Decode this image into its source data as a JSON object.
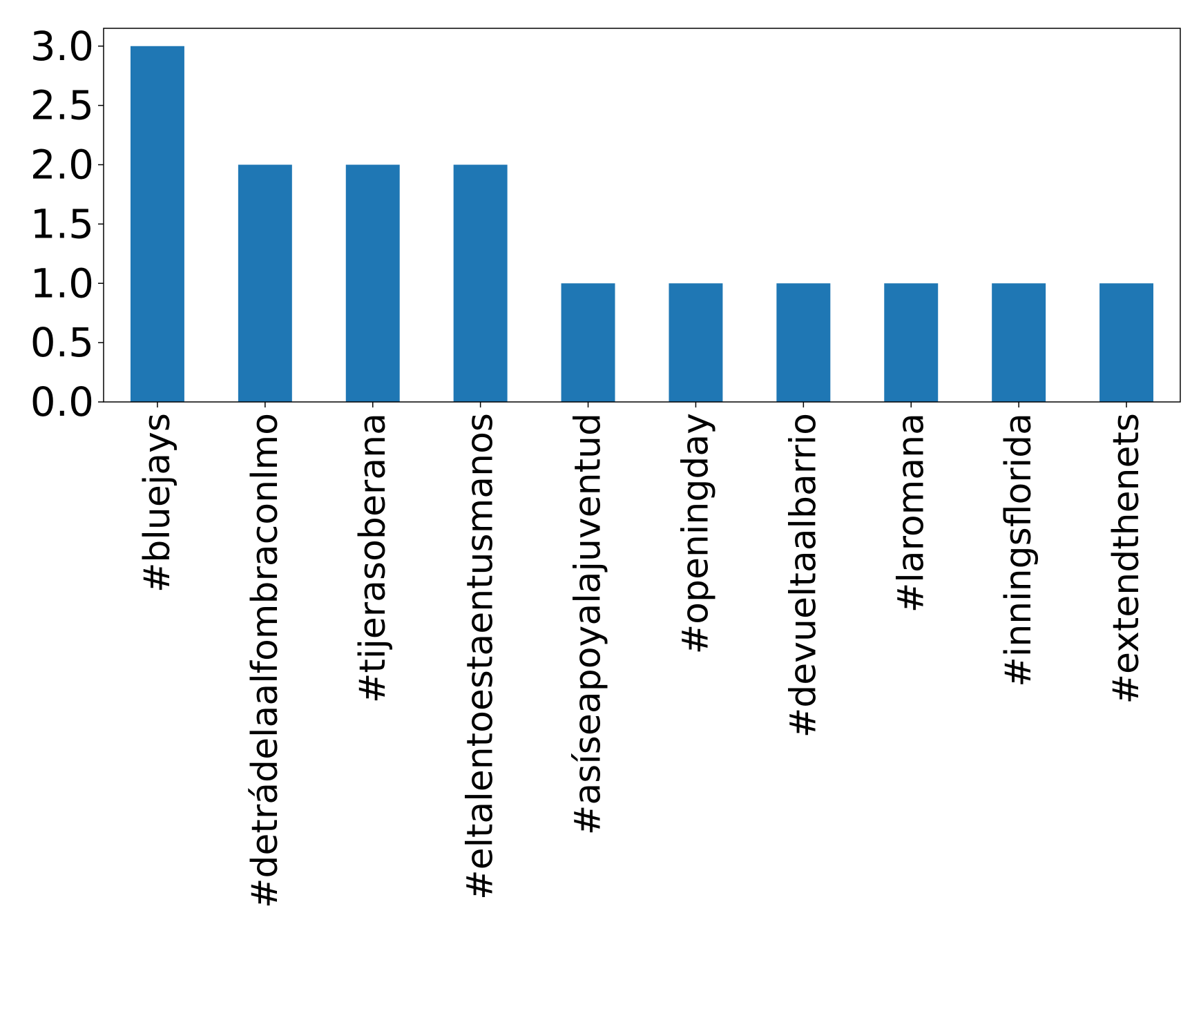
{
  "chart_data": {
    "type": "bar",
    "categories": [
      "#bluejays",
      "#detrádelaalfombraconlmo",
      "#tijerasoberana",
      "#eltalentoestaentusmanos",
      "#asíseapoyalajuventud",
      "#openingday",
      "#devueltaalbarrio",
      "#laromana",
      "#inningsflorida",
      "#extendthenets"
    ],
    "values": [
      3,
      2,
      2,
      2,
      1,
      1,
      1,
      1,
      1,
      1
    ],
    "ylim": [
      0,
      3.15
    ],
    "yticks": [
      "0.0",
      "0.5",
      "1.0",
      "1.5",
      "2.0",
      "2.5",
      "3.0"
    ],
    "title": "",
    "xlabel": "",
    "ylabel": "",
    "bar_color": "#1f77b4",
    "grid": false,
    "legend": "none"
  }
}
